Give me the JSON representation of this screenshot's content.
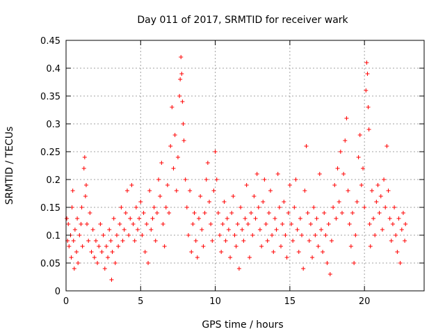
{
  "chart_data": {
    "type": "scatter",
    "title": "Day 011 of 2017, SRMTID for receiver wark",
    "xlabel": "GPS time / hours",
    "ylabel": "SRMTID / TECUs",
    "xlim": [
      0,
      24
    ],
    "ylim": [
      0,
      0.45
    ],
    "xticks": [
      0,
      5,
      10,
      15,
      20
    ],
    "xtick_labels": [
      "0",
      "5",
      "10",
      "15",
      "20"
    ],
    "yticks": [
      0,
      0.05,
      0.1,
      0.15,
      0.2,
      0.25,
      0.3,
      0.35,
      0.4,
      0.45
    ],
    "ytick_labels": [
      "0",
      "0.05",
      "0.1",
      "0.15",
      "0.2",
      "0.25",
      "0.3",
      "0.35",
      "0.4",
      "0.45"
    ],
    "grid": true,
    "marker": "+",
    "color": "#ff0000",
    "series": [
      {
        "name": "SRMTID",
        "points": [
          [
            0.05,
            0.13
          ],
          [
            0.1,
            0.09
          ],
          [
            0.15,
            0.12
          ],
          [
            0.2,
            0.08
          ],
          [
            0.3,
            0.1
          ],
          [
            0.35,
            0.06
          ],
          [
            0.4,
            0.15
          ],
          [
            0.45,
            0.18
          ],
          [
            0.5,
            0.09
          ],
          [
            0.55,
            0.04
          ],
          [
            0.6,
            0.11
          ],
          [
            0.7,
            0.07
          ],
          [
            0.75,
            0.13
          ],
          [
            0.8,
            0.05
          ],
          [
            0.9,
            0.1
          ],
          [
            1.0,
            0.12
          ],
          [
            1.05,
            0.15
          ],
          [
            1.1,
            0.08
          ],
          [
            1.2,
            0.22
          ],
          [
            1.25,
            0.24
          ],
          [
            1.3,
            0.17
          ],
          [
            1.35,
            0.19
          ],
          [
            1.4,
            0.12
          ],
          [
            1.5,
            0.09
          ],
          [
            1.6,
            0.14
          ],
          [
            1.7,
            0.07
          ],
          [
            1.8,
            0.11
          ],
          [
            1.9,
            0.06
          ],
          [
            2.0,
            0.09
          ],
          [
            2.1,
            0.05
          ],
          [
            2.2,
            0.08
          ],
          [
            2.3,
            0.12
          ],
          [
            2.4,
            0.07
          ],
          [
            2.5,
            0.1
          ],
          [
            2.6,
            0.04
          ],
          [
            2.7,
            0.08
          ],
          [
            2.8,
            0.06
          ],
          [
            2.9,
            0.11
          ],
          [
            3.0,
            0.09
          ],
          [
            3.05,
            0.02
          ],
          [
            3.1,
            0.07
          ],
          [
            3.2,
            0.13
          ],
          [
            3.3,
            0.05
          ],
          [
            3.4,
            0.1
          ],
          [
            3.5,
            0.08
          ],
          [
            3.6,
            0.12
          ],
          [
            3.7,
            0.15
          ],
          [
            3.8,
            0.09
          ],
          [
            3.9,
            0.11
          ],
          [
            4.0,
            0.14
          ],
          [
            4.1,
            0.18
          ],
          [
            4.2,
            0.1
          ],
          [
            4.3,
            0.13
          ],
          [
            4.4,
            0.19
          ],
          [
            4.5,
            0.12
          ],
          [
            4.6,
            0.09
          ],
          [
            4.7,
            0.15
          ],
          [
            4.8,
            0.11
          ],
          [
            4.9,
            0.13
          ],
          [
            5.0,
            0.16
          ],
          [
            5.1,
            0.1
          ],
          [
            5.2,
            0.14
          ],
          [
            5.3,
            0.07
          ],
          [
            5.4,
            0.12
          ],
          [
            5.5,
            0.05
          ],
          [
            5.6,
            0.18
          ],
          [
            5.7,
            0.11
          ],
          [
            5.8,
            0.13
          ],
          [
            5.9,
            0.15
          ],
          [
            6.0,
            0.09
          ],
          [
            6.1,
            0.14
          ],
          [
            6.2,
            0.2
          ],
          [
            6.3,
            0.17
          ],
          [
            6.4,
            0.23
          ],
          [
            6.5,
            0.12
          ],
          [
            6.6,
            0.08
          ],
          [
            6.7,
            0.15
          ],
          [
            6.8,
            0.19
          ],
          [
            6.9,
            0.14
          ],
          [
            7.0,
            0.26
          ],
          [
            7.1,
            0.33
          ],
          [
            7.2,
            0.22
          ],
          [
            7.3,
            0.28
          ],
          [
            7.4,
            0.18
          ],
          [
            7.5,
            0.24
          ],
          [
            7.6,
            0.35
          ],
          [
            7.65,
            0.38
          ],
          [
            7.7,
            0.42
          ],
          [
            7.75,
            0.39
          ],
          [
            7.8,
            0.34
          ],
          [
            7.85,
            0.3
          ],
          [
            7.9,
            0.27
          ],
          [
            8.0,
            0.2
          ],
          [
            8.1,
            0.15
          ],
          [
            8.2,
            0.1
          ],
          [
            8.3,
            0.18
          ],
          [
            8.4,
            0.07
          ],
          [
            8.5,
            0.12
          ],
          [
            8.6,
            0.14
          ],
          [
            8.7,
            0.09
          ],
          [
            8.8,
            0.06
          ],
          [
            8.9,
            0.13
          ],
          [
            9.0,
            0.17
          ],
          [
            9.1,
            0.11
          ],
          [
            9.2,
            0.08
          ],
          [
            9.3,
            0.14
          ],
          [
            9.4,
            0.2
          ],
          [
            9.5,
            0.23
          ],
          [
            9.6,
            0.16
          ],
          [
            9.7,
            0.12
          ],
          [
            9.8,
            0.09
          ],
          [
            9.9,
            0.18
          ],
          [
            10.0,
            0.25
          ],
          [
            10.1,
            0.2
          ],
          [
            10.2,
            0.14
          ],
          [
            10.3,
            0.1
          ],
          [
            10.4,
            0.07
          ],
          [
            10.5,
            0.12
          ],
          [
            10.6,
            0.16
          ],
          [
            10.7,
            0.09
          ],
          [
            10.8,
            0.13
          ],
          [
            10.9,
            0.11
          ],
          [
            11.0,
            0.06
          ],
          [
            11.1,
            0.14
          ],
          [
            11.2,
            0.17
          ],
          [
            11.3,
            0.1
          ],
          [
            11.4,
            0.08
          ],
          [
            11.5,
            0.12
          ],
          [
            11.6,
            0.04
          ],
          [
            11.7,
            0.15
          ],
          [
            11.8,
            0.11
          ],
          [
            11.9,
            0.09
          ],
          [
            12.0,
            0.13
          ],
          [
            12.1,
            0.19
          ],
          [
            12.2,
            0.12
          ],
          [
            12.3,
            0.06
          ],
          [
            12.4,
            0.14
          ],
          [
            12.5,
            0.1
          ],
          [
            12.6,
            0.17
          ],
          [
            12.7,
            0.13
          ],
          [
            12.8,
            0.21
          ],
          [
            12.9,
            0.15
          ],
          [
            13.0,
            0.11
          ],
          [
            13.1,
            0.08
          ],
          [
            13.2,
            0.16
          ],
          [
            13.3,
            0.2
          ],
          [
            13.4,
            0.12
          ],
          [
            13.5,
            0.09
          ],
          [
            13.6,
            0.14
          ],
          [
            13.7,
            0.18
          ],
          [
            13.8,
            0.1
          ],
          [
            13.9,
            0.07
          ],
          [
            14.0,
            0.13
          ],
          [
            14.1,
            0.11
          ],
          [
            14.2,
            0.21
          ],
          [
            14.3,
            0.15
          ],
          [
            14.4,
            0.08
          ],
          [
            14.5,
            0.12
          ],
          [
            14.6,
            0.16
          ],
          [
            14.7,
            0.1
          ],
          [
            14.8,
            0.06
          ],
          [
            14.9,
            0.14
          ],
          [
            15.0,
            0.19
          ],
          [
            15.1,
            0.12
          ],
          [
            15.2,
            0.09
          ],
          [
            15.3,
            0.15
          ],
          [
            15.4,
            0.2
          ],
          [
            15.5,
            0.11
          ],
          [
            15.6,
            0.07
          ],
          [
            15.7,
            0.13
          ],
          [
            15.8,
            0.1
          ],
          [
            15.9,
            0.04
          ],
          [
            16.0,
            0.18
          ],
          [
            16.1,
            0.26
          ],
          [
            16.2,
            0.14
          ],
          [
            16.3,
            0.09
          ],
          [
            16.4,
            0.12
          ],
          [
            16.5,
            0.06
          ],
          [
            16.6,
            0.15
          ],
          [
            16.7,
            0.1
          ],
          [
            16.8,
            0.13
          ],
          [
            16.9,
            0.08
          ],
          [
            17.0,
            0.21
          ],
          [
            17.1,
            0.11
          ],
          [
            17.2,
            0.07
          ],
          [
            17.3,
            0.14
          ],
          [
            17.4,
            0.1
          ],
          [
            17.5,
            0.05
          ],
          [
            17.6,
            0.12
          ],
          [
            17.7,
            0.03
          ],
          [
            17.8,
            0.09
          ],
          [
            17.9,
            0.15
          ],
          [
            18.0,
            0.19
          ],
          [
            18.1,
            0.13
          ],
          [
            18.2,
            0.22
          ],
          [
            18.3,
            0.16
          ],
          [
            18.4,
            0.25
          ],
          [
            18.5,
            0.14
          ],
          [
            18.6,
            0.21
          ],
          [
            18.7,
            0.27
          ],
          [
            18.8,
            0.31
          ],
          [
            18.9,
            0.18
          ],
          [
            19.0,
            0.12
          ],
          [
            19.1,
            0.08
          ],
          [
            19.2,
            0.14
          ],
          [
            19.3,
            0.05
          ],
          [
            19.4,
            0.1
          ],
          [
            19.5,
            0.16
          ],
          [
            19.6,
            0.24
          ],
          [
            19.7,
            0.28
          ],
          [
            19.8,
            0.19
          ],
          [
            19.9,
            0.22
          ],
          [
            20.0,
            0.15
          ],
          [
            20.1,
            0.36
          ],
          [
            20.15,
            0.41
          ],
          [
            20.2,
            0.39
          ],
          [
            20.25,
            0.33
          ],
          [
            20.3,
            0.29
          ],
          [
            20.35,
            0.12
          ],
          [
            20.4,
            0.08
          ],
          [
            20.5,
            0.18
          ],
          [
            20.6,
            0.13
          ],
          [
            20.7,
            0.1
          ],
          [
            20.8,
            0.16
          ],
          [
            20.9,
            0.19
          ],
          [
            21.0,
            0.14
          ],
          [
            21.1,
            0.17
          ],
          [
            21.2,
            0.11
          ],
          [
            21.3,
            0.2
          ],
          [
            21.4,
            0.15
          ],
          [
            21.5,
            0.26
          ],
          [
            21.6,
            0.18
          ],
          [
            21.7,
            0.13
          ],
          [
            21.8,
            0.09
          ],
          [
            21.9,
            0.12
          ],
          [
            22.0,
            0.15
          ],
          [
            22.1,
            0.1
          ],
          [
            22.2,
            0.07
          ],
          [
            22.3,
            0.13
          ],
          [
            22.4,
            0.05
          ],
          [
            22.5,
            0.11
          ],
          [
            22.6,
            0.14
          ],
          [
            22.7,
            0.09
          ],
          [
            22.75,
            0.12
          ]
        ]
      }
    ]
  }
}
